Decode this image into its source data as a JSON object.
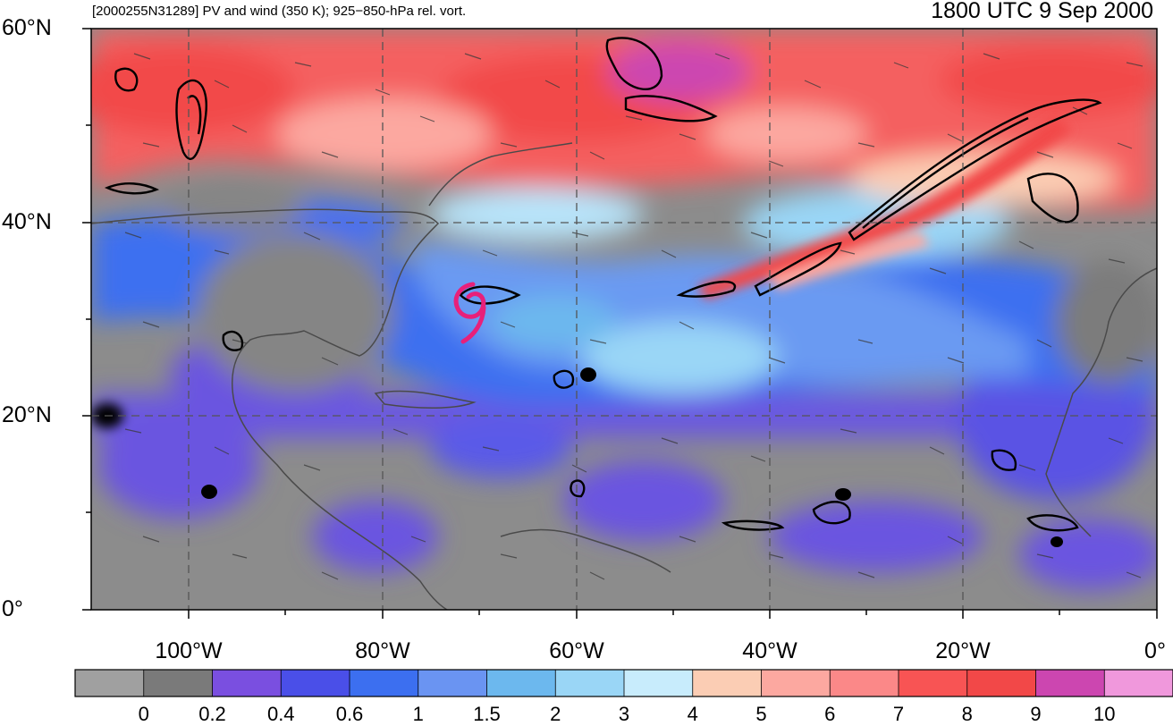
{
  "title_left": "[2000255N31289] PV and wind (350 K); 925−850-hPa rel. vort.",
  "title_right": "1800 UTC 9 Sep 2000",
  "lat_labels": [
    "60°N",
    "40°N",
    "20°N",
    "0°"
  ],
  "lon_labels": [
    "100°W",
    "80°W",
    "60°W",
    "40°W",
    "20°W",
    "0°"
  ],
  "colorbar": {
    "levels": [
      "0",
      "0.2",
      "0.4",
      "0.6",
      "1",
      "1.5",
      "2",
      "3",
      "4",
      "5",
      "6",
      "7",
      "8",
      "9",
      "10"
    ],
    "colors": [
      "#a0a0a0",
      "#7a7a7a",
      "#7a4fe0",
      "#4a4fe8",
      "#3c6ff0",
      "#6a94f2",
      "#6cb8ee",
      "#9ad6f6",
      "#c8ecfc",
      "#fbcdb4",
      "#fca8a0",
      "#fb8888",
      "#f85454",
      "#f24848",
      "#cc46b0",
      "#f098dc"
    ]
  },
  "storm_symbol": "tropical-cyclone-icon",
  "colors": {
    "storm": "#e8207a",
    "contour": "#000000",
    "coast": "#4a4a4a"
  }
}
